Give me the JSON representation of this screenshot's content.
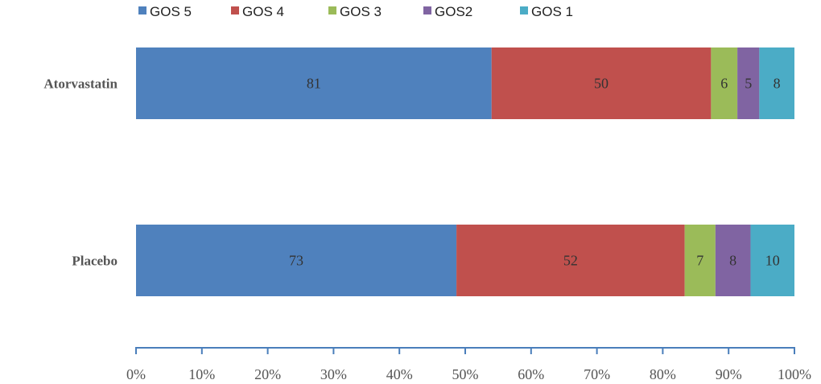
{
  "chart_data": {
    "type": "bar",
    "orientation": "horizontal",
    "stacked": "percent",
    "title": "",
    "xlabel": "",
    "ylabel": "",
    "xlim": [
      0,
      100
    ],
    "x_ticks": [
      "0%",
      "10%",
      "20%",
      "30%",
      "40%",
      "50%",
      "60%",
      "70%",
      "80%",
      "90%",
      "100%"
    ],
    "categories": [
      "Atorvastatin",
      "Placebo"
    ],
    "series": [
      {
        "name": "GOS 5",
        "color": "#4f81bd",
        "values": [
          81,
          73
        ]
      },
      {
        "name": "GOS 4",
        "color": "#c0504d",
        "values": [
          50,
          52
        ]
      },
      {
        "name": "GOS 3",
        "color": "#9bbb59",
        "values": [
          6,
          7
        ]
      },
      {
        "name": "GOS2",
        "color": "#8064a2",
        "values": [
          5,
          8
        ]
      },
      {
        "name": "GOS 1",
        "color": "#4bacc6",
        "values": [
          8,
          10
        ]
      }
    ],
    "legend_position": "top",
    "grid": false,
    "axis_color": "#4a7ebb"
  }
}
